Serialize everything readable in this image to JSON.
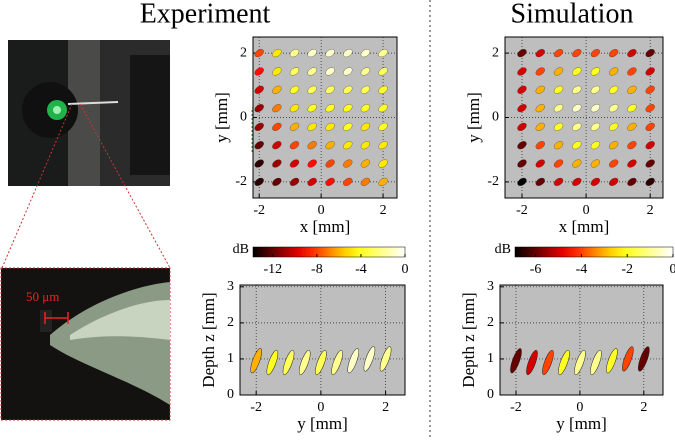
{
  "header": {
    "left": "Experiment",
    "right": "Simulation"
  },
  "photo": {
    "scale_label": "50 μm"
  },
  "chart_data": [
    {
      "type": "ellipse-grid",
      "xlabel": "x [mm]",
      "ylabel": "y [mm]",
      "colormap": "hot",
      "grid": true,
      "xlim": [
        -2.2,
        2.45
      ],
      "ylim": [
        -2.5,
        2.5
      ],
      "xticks": [
        -2,
        0,
        2
      ],
      "yticks": [
        -2,
        0,
        2
      ],
      "clim": [
        -13.8,
        0
      ],
      "x": [
        -2,
        -1.43,
        -0.86,
        -0.29,
        0.29,
        0.86,
        1.43,
        2
      ],
      "y": [
        2,
        1.43,
        0.86,
        0.29,
        -0.29,
        -0.86,
        -1.43,
        -2
      ],
      "values": [
        [
          -8,
          -5,
          -2,
          -1,
          -1,
          -1,
          -1,
          -2
        ],
        [
          -9,
          -5,
          -3,
          -2,
          -1,
          -1,
          -2,
          -3
        ],
        [
          -10,
          -6,
          -4,
          -3,
          -3,
          -3,
          -3,
          -4
        ],
        [
          -11,
          -7,
          -5,
          -4,
          -4,
          -4,
          -4,
          -4
        ],
        [
          -11,
          -8,
          -6,
          -5,
          -5,
          -4,
          -5,
          -4
        ],
        [
          -12,
          -10,
          -8,
          -7,
          -6,
          -5,
          -5,
          -5
        ],
        [
          -13,
          -11,
          -10,
          -9,
          -8,
          -7,
          -6,
          -5
        ],
        [
          -13,
          -12,
          -11,
          -10,
          -9,
          -8,
          -7,
          -6
        ]
      ]
    },
    {
      "type": "scatter",
      "xlabel": "y [mm]",
      "ylabel": "Depth z [mm]",
      "colormap": "hot",
      "grid": true,
      "xlim": [
        -2.5,
        2.6
      ],
      "ylim": [
        0,
        3.05
      ],
      "xticks": [
        -2,
        0,
        2
      ],
      "yticks": [
        0,
        1,
        2,
        3
      ],
      "colorbar": {
        "label": "dB",
        "lim": [
          -13.8,
          0
        ],
        "ticks": [
          -12,
          -8,
          -4,
          0
        ]
      },
      "x": [
        -2,
        -1.5,
        -1,
        -0.5,
        0,
        0.5,
        1,
        1.5,
        2
      ],
      "y": [
        0.95,
        0.9,
        0.9,
        0.9,
        0.9,
        0.9,
        0.95,
        1,
        1
      ],
      "db": [
        -6,
        -4,
        -3,
        -2,
        -3,
        -2,
        -1,
        -1,
        -2
      ]
    },
    {
      "type": "ellipse-grid",
      "xlabel": "x [mm]",
      "ylabel": "y [mm]",
      "colormap": "hot",
      "grid": true,
      "xlim": [
        -2.53,
        2.4
      ],
      "ylim": [
        -2.5,
        2.5
      ],
      "xticks": [
        -2,
        0,
        2
      ],
      "yticks": [
        -2,
        0,
        2
      ],
      "clim": [
        -6.9,
        0
      ],
      "x": [
        -2,
        -1.43,
        -0.86,
        -0.29,
        0.29,
        0.86,
        1.43,
        2
      ],
      "y": [
        2,
        1.43,
        0.86,
        0.29,
        -0.29,
        -0.86,
        -1.43,
        -2
      ],
      "values": [
        [
          -6,
          -5,
          -4,
          -4,
          -4,
          -4,
          -5,
          -6
        ],
        [
          -5,
          -4,
          -3,
          -2,
          -2,
          -3,
          -4,
          -5
        ],
        [
          -5,
          -3,
          -2,
          -1,
          -1,
          -2,
          -3,
          -4
        ],
        [
          -5,
          -3,
          -1,
          -0.5,
          -0.5,
          -1,
          -2,
          -4
        ],
        [
          -5,
          -3,
          -2,
          -1,
          -1,
          -2,
          -3,
          -4
        ],
        [
          -6,
          -4,
          -3,
          -2,
          -2,
          -3,
          -4,
          -5
        ],
        [
          -6,
          -5,
          -4,
          -3,
          -3,
          -4,
          -5,
          -6
        ],
        [
          -7,
          -6,
          -5,
          -5,
          -5,
          -5,
          -6,
          -6.5
        ]
      ]
    },
    {
      "type": "scatter",
      "xlabel": "y [mm]",
      "ylabel": "Depth z [mm]",
      "colormap": "hot",
      "grid": true,
      "xlim": [
        -2.5,
        2.6
      ],
      "ylim": [
        0,
        3.05
      ],
      "xticks": [
        -2,
        0,
        2
      ],
      "yticks": [
        0,
        1,
        2,
        3
      ],
      "colorbar": {
        "label": "dB",
        "lim": [
          -6.9,
          0
        ],
        "ticks": [
          -6,
          -4,
          -2,
          0
        ]
      },
      "x": [
        -2,
        -1.5,
        -1,
        -0.5,
        0,
        0.5,
        1,
        1.5,
        2
      ],
      "y": [
        0.95,
        0.9,
        0.9,
        0.9,
        0.9,
        0.9,
        0.95,
        1,
        1
      ],
      "db": [
        -6,
        -5,
        -4,
        -2,
        -1,
        -1,
        -2,
        -4,
        -6
      ]
    }
  ]
}
